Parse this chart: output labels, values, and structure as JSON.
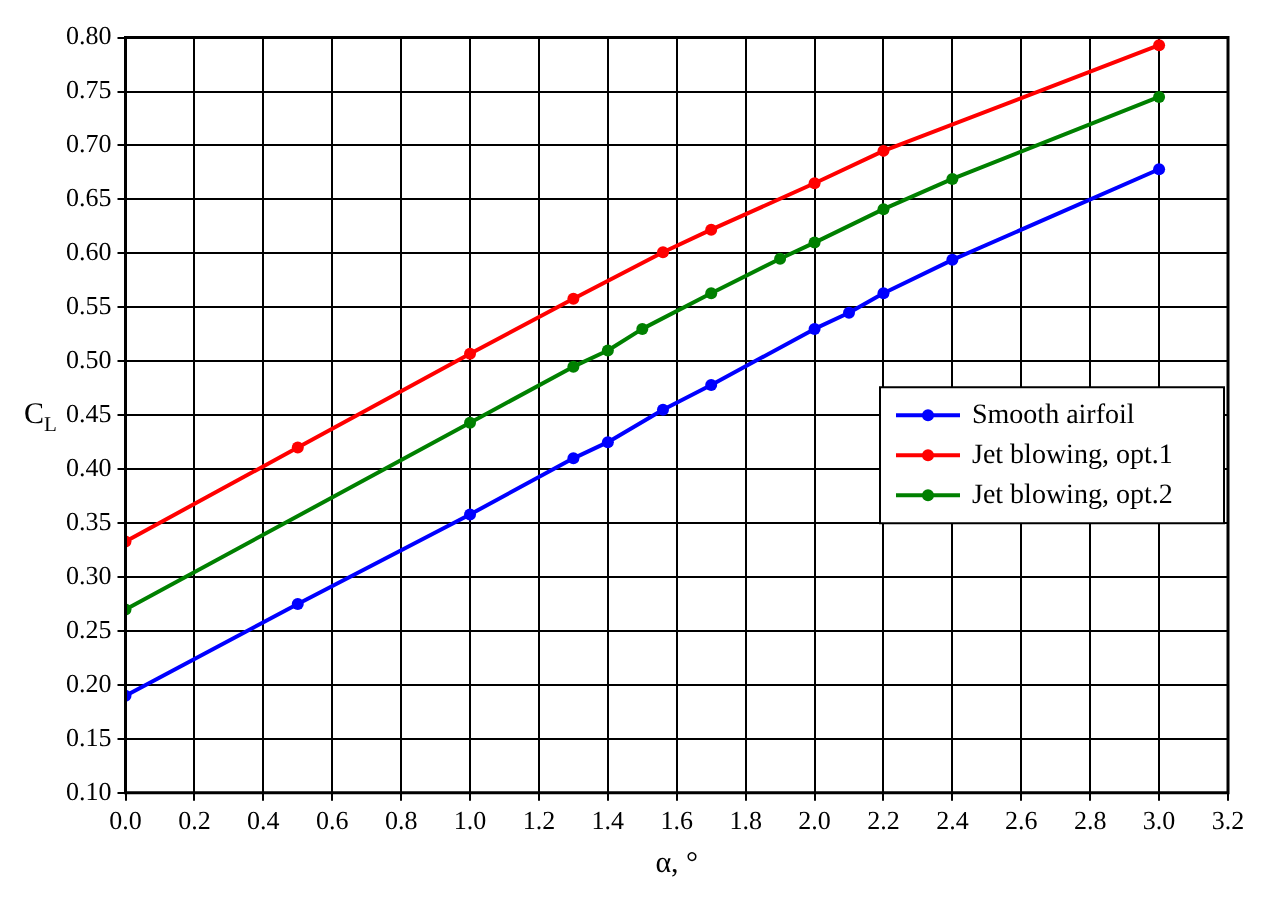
{
  "chart_data": {
    "type": "line",
    "xlabel": "α, °",
    "ylabel": "C$_{L}$",
    "xlim": [
      0,
      3.2
    ],
    "xticks": [
      {
        "value": 0,
        "label": "0.0"
      },
      0.2,
      0.4,
      0.6,
      0.8,
      {
        "value": 1,
        "label": "1.0"
      },
      1.2,
      1.4,
      1.6,
      1.8,
      {
        "value": 2,
        "label": "2.0"
      },
      2.2,
      2.4,
      2.6,
      2.8,
      {
        "value": 3,
        "label": "3.0"
      },
      3.2
    ],
    "ylim": [
      0.1,
      0.8
    ],
    "yticks": [
      {
        "value": 0.1,
        "label": "0.10"
      },
      0.15,
      {
        "value": 0.2,
        "label": "0.20"
      },
      0.25,
      {
        "value": 0.3,
        "label": "0.30"
      },
      0.35,
      {
        "value": 0.4,
        "label": "0.40"
      },
      0.45,
      {
        "value": 0.5,
        "label": "0.50"
      },
      0.55,
      {
        "value": 0.6,
        "label": "0.60"
      },
      0.65,
      {
        "value": 0.7,
        "label": "0.70"
      },
      0.75,
      {
        "value": 0.8,
        "label": "0.80"
      }
    ],
    "grid": true,
    "legend": "right",
    "marker": "circle",
    "line_style": "solid",
    "series": [
      {
        "name": "Smooth airfoil",
        "color": "#0000ff",
        "x": [
          0,
          0.5,
          1,
          1.3,
          1.4,
          1.56,
          1.7,
          2,
          2.1,
          2.2,
          2.4,
          3
        ],
        "values": [
          0.19,
          0.275,
          0.358,
          0.41,
          0.425,
          0.455,
          0.478,
          0.53,
          0.545,
          0.563,
          0.594,
          0.678
        ]
      },
      {
        "name": "Jet blowing, opt.1",
        "color": "#ff0000",
        "x": [
          0,
          0.5,
          1,
          1.3,
          1.56,
          1.7,
          2,
          2.2,
          3
        ],
        "values": [
          0.333,
          0.42,
          0.507,
          0.558,
          0.601,
          0.622,
          0.665,
          0.695,
          0.793
        ]
      },
      {
        "name": "Jet blowing, opt.2",
        "color": "#008000",
        "x": [
          0,
          1,
          1.3,
          1.4,
          1.5,
          1.7,
          1.9,
          2,
          2.2,
          2.4,
          3
        ],
        "values": [
          0.27,
          0.443,
          0.495,
          0.51,
          0.53,
          0.563,
          0.595,
          0.61,
          0.641,
          0.669,
          0.745
        ]
      }
    ]
  }
}
